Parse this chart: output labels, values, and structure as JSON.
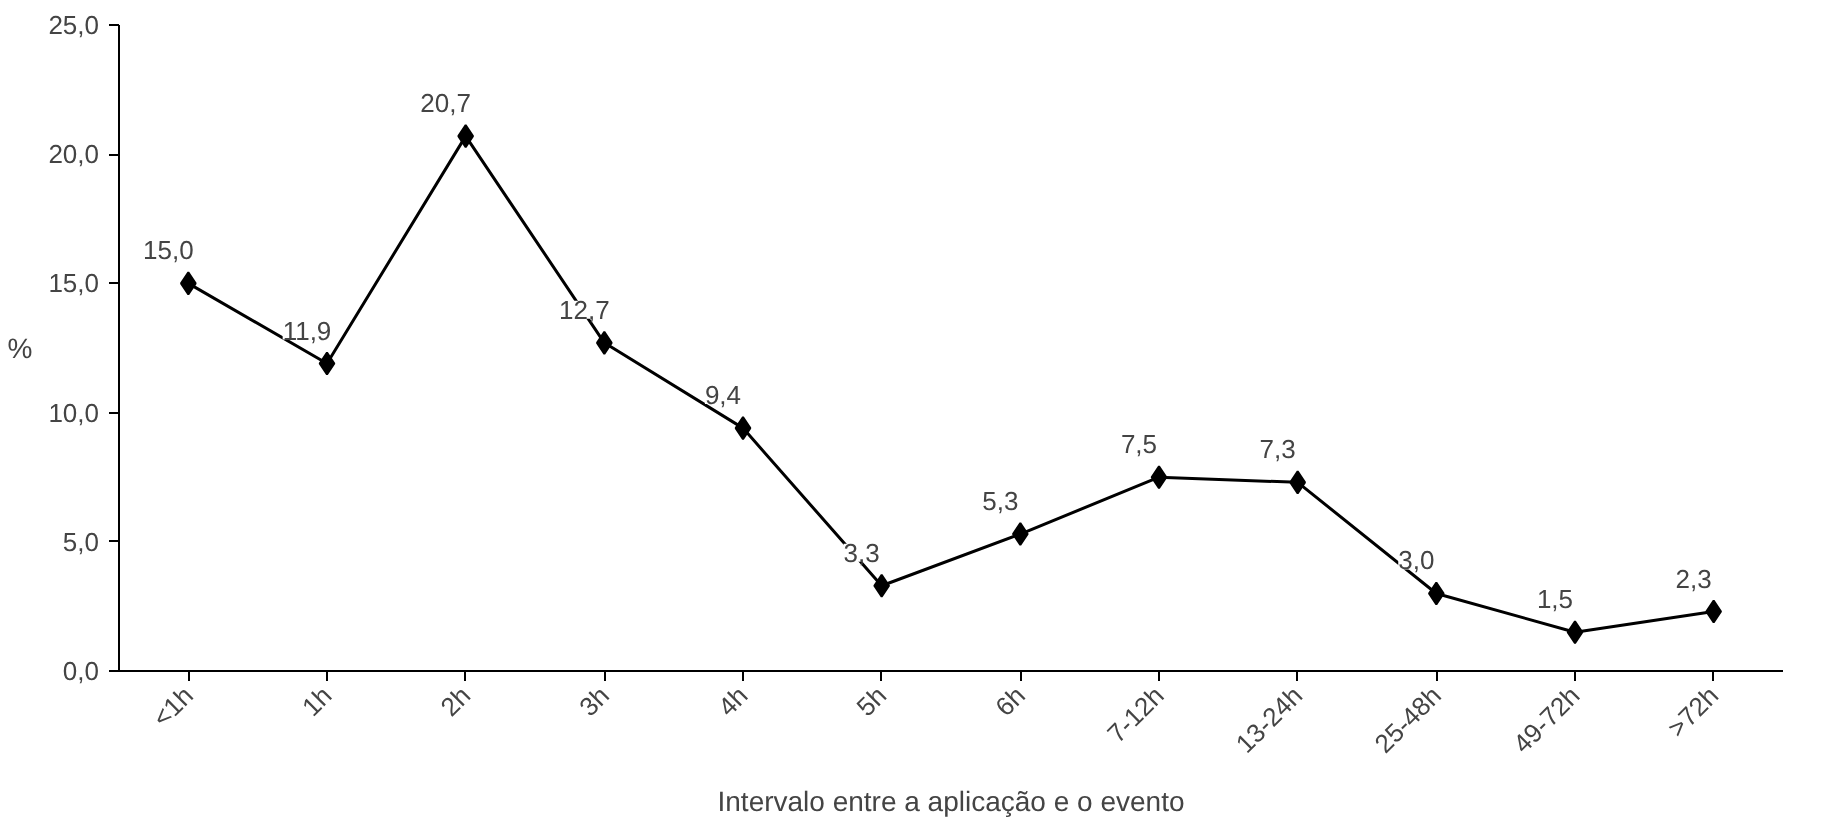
{
  "chart_data": {
    "type": "line",
    "xlabel": "Intervalo entre a aplicação e o evento",
    "ylabel": "%",
    "categories": [
      "<1h",
      "1h",
      "2h",
      "3h",
      "4h",
      "5h",
      "6h",
      "7-12h",
      "13-24h",
      "25-48h",
      "49-72h",
      ">72h"
    ],
    "series": [
      {
        "color": "#000000",
        "values": [
          15.0,
          11.9,
          20.7,
          12.7,
          9.4,
          3.3,
          5.3,
          7.5,
          7.3,
          3.0,
          1.5,
          2.3
        ],
        "value_labels": [
          "15,0",
          "11,9",
          "20,7",
          "12,7",
          "9,4",
          "3,3",
          "5,3",
          "7,5",
          "7,3",
          "3,0",
          "1,5",
          "2,3"
        ]
      }
    ],
    "ylim": [
      0,
      25
    ],
    "yticks": [
      {
        "value": 0,
        "label": "0,0"
      },
      {
        "value": 5,
        "label": "5,0"
      },
      {
        "value": 10,
        "label": "10,0"
      },
      {
        "value": 15,
        "label": "15,0"
      },
      {
        "value": 20,
        "label": "20,0"
      },
      {
        "value": 25,
        "label": "25,0"
      }
    ],
    "grid": false,
    "marker": "diamond",
    "line_style": "solid"
  }
}
